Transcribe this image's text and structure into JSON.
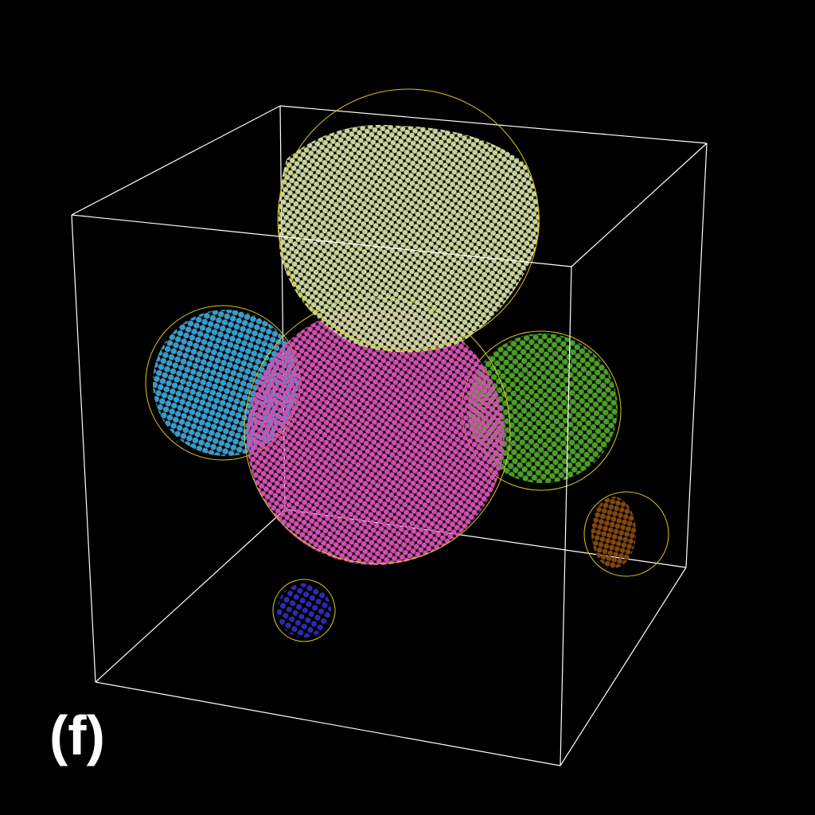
{
  "panel_label": "(f)",
  "colors": {
    "background": "#000000",
    "box_edges": "#ffffff",
    "outline": "#d8c81a"
  },
  "clusters": [
    {
      "name": "cluster-pale-green",
      "color": "#c8d39a"
    },
    {
      "name": "cluster-magenta",
      "color": "#d24fb0"
    },
    {
      "name": "cluster-blue",
      "color": "#3a9bc8"
    },
    {
      "name": "cluster-green",
      "color": "#4b9c28"
    },
    {
      "name": "cluster-brown",
      "color": "#82470b"
    },
    {
      "name": "cluster-indigo",
      "color": "#2e2ab0"
    }
  ]
}
